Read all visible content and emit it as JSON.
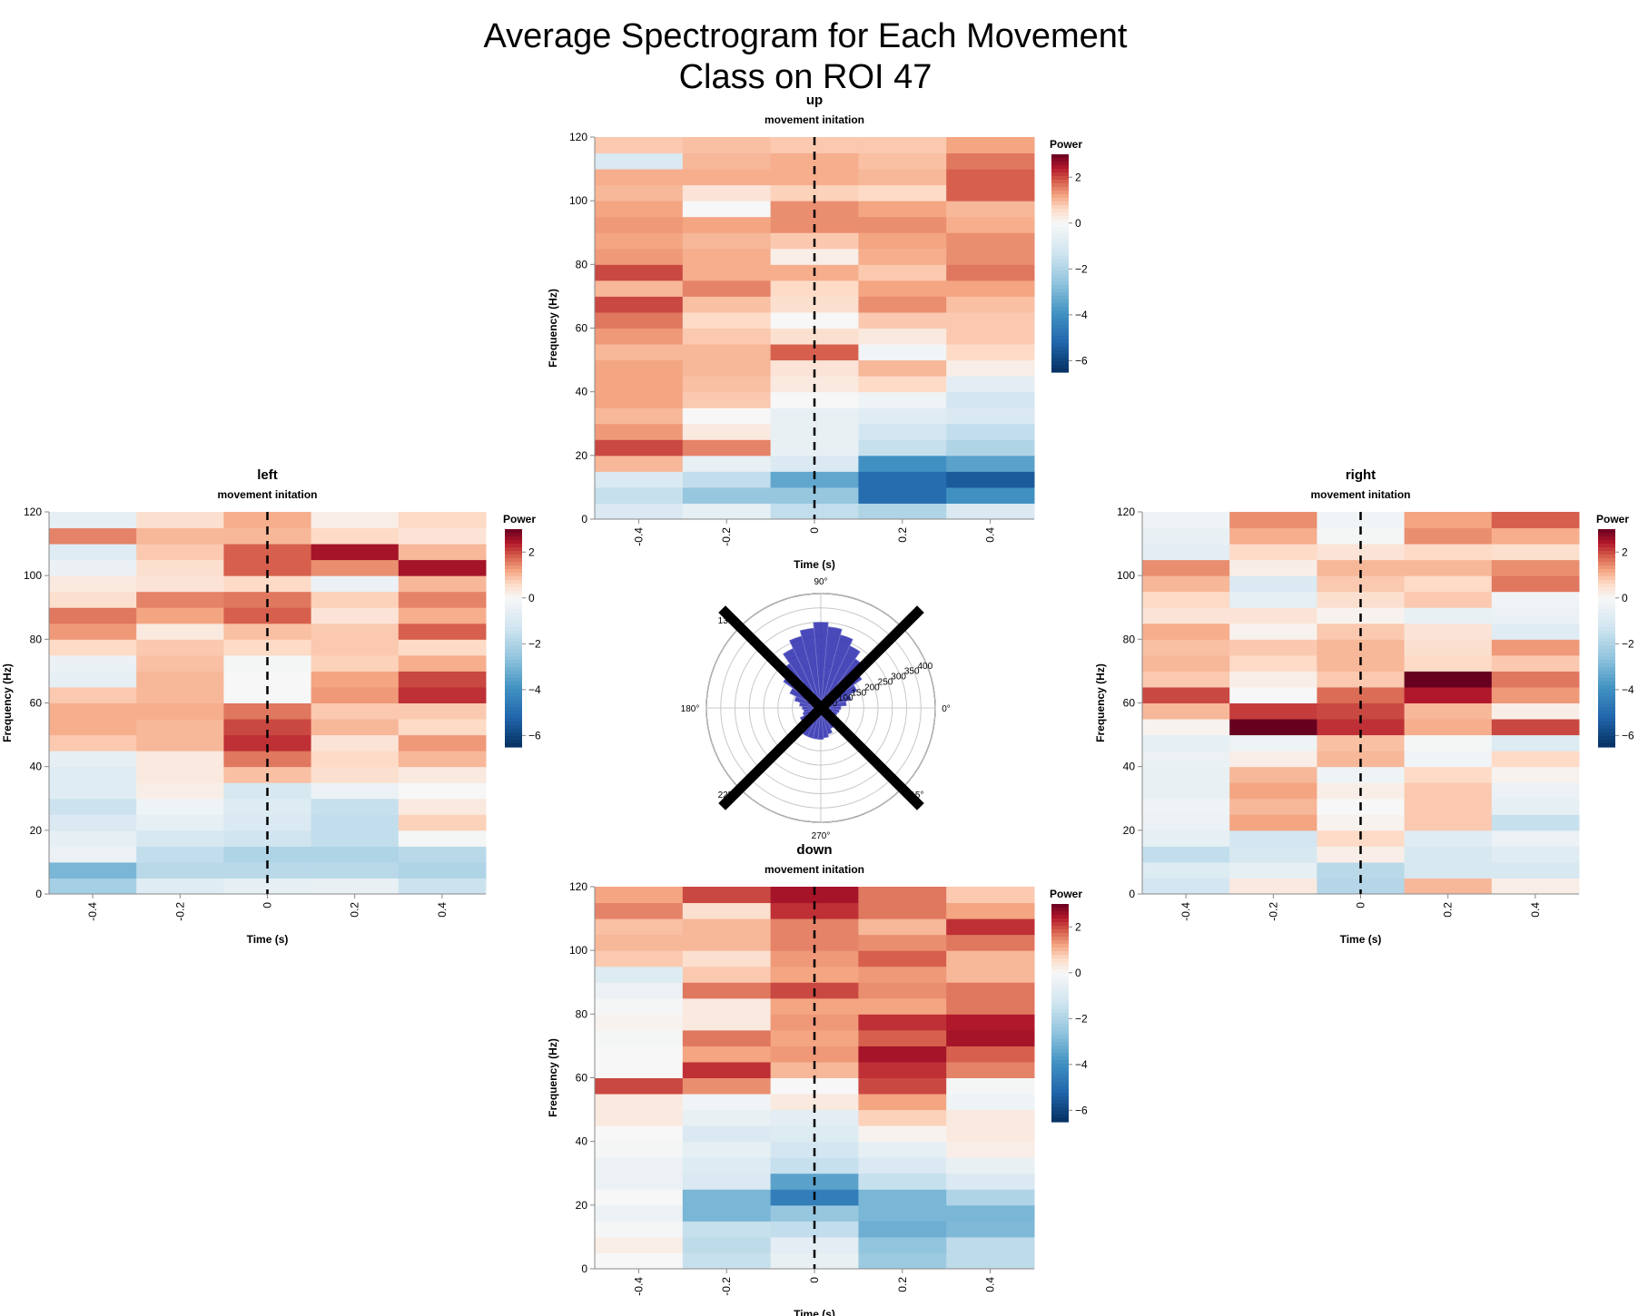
{
  "chart_data": {
    "type": "heatmap",
    "title_line1": "Average Spectrogram for Each Movement",
    "title_line2": "Class on ROI 47",
    "common": {
      "subtitle": "movement initation",
      "xlabel": "Time (s)",
      "ylabel": "Frequency (Hz)",
      "x_ticks": [
        "-0.4",
        "-0.2",
        "0",
        "0.2",
        "0.4"
      ],
      "y_ticks": [
        "0",
        "20",
        "40",
        "60",
        "80",
        "100",
        "120"
      ],
      "time_bins": [
        -0.4,
        -0.2,
        0.0,
        0.2,
        0.4
      ],
      "xlim": [
        -0.5,
        0.5
      ],
      "ylim": [
        0,
        120
      ],
      "freq_bin_width_hz": 5,
      "event_line_time": 0,
      "colorbar_title": "Power",
      "colorbar_ticks": [
        "2",
        "0",
        "−2",
        "−4",
        "−6"
      ],
      "colorbar_range": [
        -6.5,
        3
      ]
    },
    "panels": [
      {
        "name": "up",
        "values": [
          [
            -1.0,
            -0.6,
            -1.6,
            -2.0,
            -1.0
          ],
          [
            -1.5,
            -2.5,
            -2.5,
            -5.0,
            -4.0
          ],
          [
            -1.0,
            -1.6,
            -3.4,
            -5.0,
            -5.5
          ],
          [
            1.0,
            -0.5,
            -1.0,
            -4.0,
            -3.5
          ],
          [
            2.0,
            1.5,
            -0.5,
            -1.5,
            -2.0
          ],
          [
            1.3,
            0.3,
            -0.5,
            -1.2,
            -1.6
          ],
          [
            1.0,
            0.0,
            -0.5,
            -0.8,
            -1.0
          ],
          [
            1.2,
            0.8,
            0.0,
            -0.3,
            -1.2
          ],
          [
            1.2,
            0.9,
            0.3,
            0.6,
            -0.7
          ],
          [
            1.2,
            1.0,
            0.4,
            1.0,
            0.2
          ],
          [
            1.0,
            1.0,
            1.8,
            -0.2,
            0.6
          ],
          [
            1.3,
            0.8,
            0.5,
            0.3,
            0.8
          ],
          [
            1.6,
            0.6,
            0.0,
            0.8,
            0.8
          ],
          [
            2.0,
            0.9,
            0.5,
            1.4,
            0.9
          ],
          [
            1.0,
            1.5,
            0.6,
            1.2,
            1.2
          ],
          [
            2.0,
            1.1,
            1.1,
            0.8,
            1.6
          ],
          [
            1.3,
            1.1,
            0.2,
            1.1,
            1.4
          ],
          [
            1.2,
            1.0,
            0.8,
            1.2,
            1.4
          ],
          [
            1.3,
            1.2,
            1.4,
            1.4,
            1.1
          ],
          [
            1.2,
            0.0,
            1.4,
            1.2,
            1.0
          ],
          [
            1.0,
            0.4,
            0.7,
            0.6,
            1.8
          ],
          [
            1.1,
            1.1,
            1.1,
            1.0,
            1.8
          ],
          [
            -1.0,
            1.0,
            1.1,
            0.9,
            1.6
          ],
          [
            0.8,
            0.9,
            0.8,
            0.8,
            1.2
          ]
        ]
      },
      {
        "name": "left",
        "values": [
          [
            -2.2,
            -0.8,
            -0.6,
            -0.5,
            -1.4
          ],
          [
            -3.0,
            -1.8,
            -1.8,
            -1.8,
            -2.0
          ],
          [
            -0.4,
            -1.6,
            -2.0,
            -2.0,
            -1.8
          ],
          [
            -0.6,
            -1.1,
            -1.3,
            -1.6,
            -0.1
          ],
          [
            -1.0,
            -0.6,
            -1.0,
            -1.6,
            0.7
          ],
          [
            -1.4,
            -0.3,
            -0.9,
            -1.5,
            0.3
          ],
          [
            -0.8,
            0.2,
            -1.1,
            -0.4,
            0.0
          ],
          [
            -0.8,
            0.3,
            0.9,
            0.5,
            0.3
          ],
          [
            -0.6,
            0.3,
            1.6,
            0.6,
            1.0
          ],
          [
            0.8,
            1.0,
            2.2,
            0.4,
            1.3
          ],
          [
            1.1,
            1.0,
            2.0,
            1.0,
            0.6
          ],
          [
            1.1,
            1.1,
            1.6,
            0.8,
            0.8
          ],
          [
            0.8,
            1.0,
            0.0,
            1.3,
            2.2
          ],
          [
            -0.6,
            1.0,
            0.0,
            1.2,
            2.0
          ],
          [
            -0.4,
            0.9,
            -0.1,
            0.7,
            1.1
          ],
          [
            0.6,
            0.8,
            0.6,
            0.8,
            0.6
          ],
          [
            1.3,
            0.3,
            0.9,
            0.8,
            1.8
          ],
          [
            1.6,
            1.2,
            1.8,
            0.4,
            1.1
          ],
          [
            0.5,
            1.5,
            1.6,
            0.7,
            1.5
          ],
          [
            0.3,
            0.4,
            0.6,
            -0.4,
            1.0
          ],
          [
            -0.4,
            0.5,
            1.8,
            1.4,
            2.5
          ],
          [
            -0.8,
            0.8,
            1.8,
            2.5,
            1.0
          ],
          [
            1.5,
            1.0,
            1.0,
            0.6,
            0.4
          ],
          [
            -0.6,
            0.5,
            1.1,
            0.2,
            0.6
          ]
        ]
      },
      {
        "name": "right",
        "values": [
          [
            -1.2,
            0.3,
            -1.9,
            1.0,
            0.2
          ],
          [
            -0.9,
            -0.6,
            -1.8,
            -1.1,
            -1.1
          ],
          [
            -1.6,
            -1.1,
            0.2,
            -1.1,
            -0.8
          ],
          [
            -0.6,
            -1.2,
            0.6,
            -0.8,
            -0.4
          ],
          [
            -0.4,
            1.2,
            0.1,
            0.8,
            -1.5
          ],
          [
            -0.3,
            1.0,
            0.0,
            0.8,
            -0.6
          ],
          [
            -0.5,
            1.2,
            0.2,
            0.8,
            -0.4
          ],
          [
            -0.5,
            1.0,
            -0.3,
            0.6,
            0.1
          ],
          [
            -0.4,
            0.2,
            1.0,
            -0.2,
            0.6
          ],
          [
            -0.6,
            -0.3,
            0.9,
            -0.1,
            -0.9
          ],
          [
            0.1,
            3.0,
            2.2,
            1.1,
            2.0
          ],
          [
            1.0,
            2.1,
            2.0,
            1.0,
            0.2
          ],
          [
            2.0,
            0.0,
            1.7,
            2.4,
            1.3
          ],
          [
            0.8,
            0.2,
            0.8,
            3.0,
            1.6
          ],
          [
            1.0,
            0.6,
            1.0,
            0.6,
            0.8
          ],
          [
            0.9,
            0.8,
            1.0,
            0.5,
            1.3
          ],
          [
            1.1,
            0.1,
            0.8,
            0.4,
            -0.8
          ],
          [
            0.4,
            0.4,
            0.1,
            -0.5,
            -0.4
          ],
          [
            0.6,
            -0.6,
            0.5,
            0.8,
            -0.2
          ],
          [
            1.0,
            -1.0,
            0.8,
            0.6,
            1.6
          ],
          [
            1.4,
            0.2,
            1.0,
            1.0,
            1.4
          ],
          [
            -0.7,
            0.6,
            0.4,
            0.6,
            0.5
          ],
          [
            -0.5,
            1.1,
            -0.1,
            1.4,
            1.1
          ],
          [
            -0.3,
            1.4,
            -0.2,
            1.2,
            1.8
          ]
        ]
      },
      {
        "name": "down",
        "values": [
          [
            0.0,
            -1.5,
            -0.5,
            -2.4,
            -1.7
          ],
          [
            0.2,
            -1.7,
            -0.7,
            -2.6,
            -1.7
          ],
          [
            -0.1,
            -1.5,
            -1.6,
            -3.2,
            -2.9
          ],
          [
            -0.4,
            -3.0,
            -2.5,
            -3.0,
            -3.0
          ],
          [
            0.0,
            -3.0,
            -4.5,
            -3.0,
            -2.0
          ],
          [
            -0.4,
            -1.0,
            -3.5,
            -1.5,
            -1.0
          ],
          [
            -0.4,
            -0.9,
            -1.5,
            -1.0,
            -0.5
          ],
          [
            -0.1,
            -0.6,
            -1.2,
            -0.6,
            0.2
          ],
          [
            0.0,
            -1.0,
            -0.9,
            0.1,
            0.3
          ],
          [
            0.3,
            -0.5,
            -0.7,
            0.7,
            0.3
          ],
          [
            0.3,
            -0.2,
            0.3,
            1.2,
            -0.3
          ],
          [
            2.0,
            1.4,
            0.0,
            2.0,
            -0.1
          ],
          [
            0.0,
            2.2,
            1.0,
            2.2,
            1.5
          ],
          [
            0.0,
            1.2,
            1.3,
            2.5,
            1.8
          ],
          [
            -0.1,
            1.6,
            1.2,
            1.8,
            2.5
          ],
          [
            0.1,
            0.3,
            1.3,
            2.2,
            2.4
          ],
          [
            -0.1,
            0.3,
            1.2,
            1.2,
            1.6
          ],
          [
            -0.4,
            1.6,
            2.0,
            1.4,
            1.6
          ],
          [
            -0.9,
            0.8,
            1.2,
            1.3,
            1.0
          ],
          [
            0.8,
            0.5,
            1.3,
            1.8,
            1.0
          ],
          [
            1.0,
            1.0,
            1.5,
            1.4,
            1.6
          ],
          [
            0.9,
            1.0,
            1.5,
            1.0,
            2.2
          ],
          [
            1.5,
            0.5,
            2.2,
            1.6,
            1.2
          ],
          [
            1.2,
            2.0,
            2.5,
            1.6,
            0.8
          ]
        ]
      }
    ],
    "polar": {
      "type": "polar-histogram",
      "angle_labels": [
        "90°",
        "135°",
        "180°",
        "225°",
        "270°",
        "315°",
        "0°"
      ],
      "radial_ticks": [
        "50",
        "100",
        "150",
        "200",
        "250",
        "300",
        "350",
        "400"
      ],
      "radial_max": 400,
      "bar_color": "#3535b3",
      "bin_width_deg": 10,
      "bins_deg": [
        0,
        10,
        20,
        30,
        40,
        50,
        60,
        70,
        80,
        90,
        100,
        110,
        120,
        130,
        140,
        150,
        160,
        170,
        180,
        190,
        200,
        210,
        220,
        230,
        240,
        250,
        260,
        270,
        280,
        290,
        300,
        310,
        320,
        330,
        340,
        350
      ],
      "counts": [
        70,
        90,
        110,
        140,
        175,
        210,
        240,
        265,
        285,
        300,
        280,
        260,
        230,
        190,
        160,
        120,
        95,
        75,
        65,
        60,
        65,
        80,
        95,
        105,
        110,
        110,
        110,
        110,
        105,
        95,
        80,
        70,
        60,
        55,
        60,
        65
      ],
      "overlay": "X mark"
    }
  }
}
